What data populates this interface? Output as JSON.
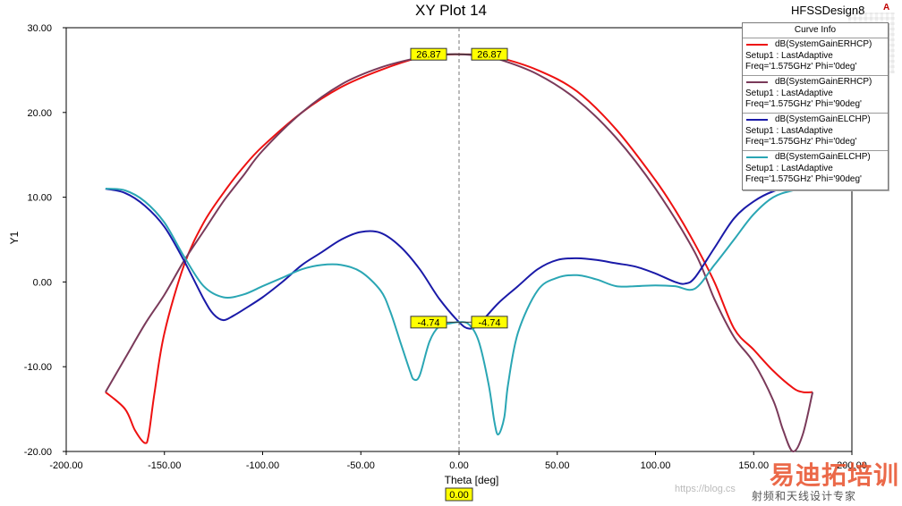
{
  "design_name": "HFSSDesign8",
  "design_icon": "A",
  "watermark": {
    "main": "易迪拓培训",
    "sub": "射频和天线设计专家",
    "url": "https://blog.cs"
  },
  "chart_data": {
    "type": "line",
    "title": "XY Plot 14",
    "xlabel": "Theta [deg]",
    "ylabel": "Y1",
    "xlim": [
      -200,
      200
    ],
    "ylim": [
      -20,
      30
    ],
    "x_ticks": [
      -200,
      -150,
      -100,
      -50,
      0,
      50,
      100,
      150,
      200
    ],
    "x_tick_labels": [
      "-200.00",
      "-150.00",
      "-100.00",
      "-50.00",
      "0.00",
      "50.00",
      "100.00",
      "150.00",
      "200.00"
    ],
    "y_ticks": [
      -20,
      -10,
      0,
      10,
      20,
      30
    ],
    "y_tick_labels": [
      "-20.00",
      "-10.00",
      "0.00",
      "10.00",
      "20.00",
      "30.00"
    ],
    "grid": false,
    "legend_title": "Curve Info",
    "series": [
      {
        "name": "dB(SystemGainERHCP)",
        "setup": "Setup1 : LastAdaptive",
        "params": "Freq='1.575GHz' Phi='0deg'",
        "color": "#ee1111",
        "x": [
          -180,
          -170,
          -165,
          -160,
          -158,
          -155,
          -150,
          -140,
          -130,
          -120,
          -110,
          -100,
          -80,
          -60,
          -40,
          -20,
          -10,
          0,
          10,
          20,
          40,
          60,
          80,
          100,
          110,
          120,
          130,
          140,
          150,
          160,
          170,
          175,
          180
        ],
        "y": [
          -13,
          -15,
          -17.5,
          -19,
          -18,
          -13,
          -6,
          2,
          7,
          10.5,
          13.5,
          16,
          20,
          23,
          25,
          26.5,
          26.8,
          26.87,
          26.8,
          26.5,
          25,
          22.5,
          18,
          12,
          8.5,
          4.5,
          0,
          -5.5,
          -8,
          -10.5,
          -12.5,
          -13,
          -13
        ]
      },
      {
        "name": "dB(SystemGainERHCP)",
        "setup": "Setup1 : LastAdaptive",
        "params": "Freq='1.575GHz' Phi='90deg'",
        "color": "#7a3a5a",
        "x": [
          -180,
          -170,
          -160,
          -150,
          -140,
          -130,
          -120,
          -110,
          -100,
          -80,
          -60,
          -40,
          -20,
          -10,
          0,
          10,
          20,
          40,
          60,
          80,
          100,
          120,
          130,
          140,
          150,
          160,
          165,
          170,
          175,
          180
        ],
        "y": [
          -13,
          -9,
          -5,
          -1.5,
          2.5,
          6,
          9.5,
          12.5,
          15.5,
          20,
          23.3,
          25.3,
          26.5,
          26.8,
          26.87,
          26.7,
          26.3,
          24.5,
          21.5,
          17,
          11,
          3.5,
          -2,
          -6.5,
          -9.5,
          -14,
          -17.5,
          -20,
          -18,
          -13
        ]
      },
      {
        "name": "dB(SystemGainELCHP)",
        "setup": "Setup1 : LastAdaptive",
        "params": "Freq='1.575GHz' Phi='0deg'",
        "color": "#1a1aa8",
        "x": [
          -180,
          -170,
          -160,
          -150,
          -140,
          -130,
          -125,
          -120,
          -115,
          -110,
          -100,
          -90,
          -80,
          -70,
          -60,
          -50,
          -40,
          -30,
          -20,
          -10,
          0,
          5,
          10,
          20,
          30,
          40,
          50,
          60,
          70,
          80,
          90,
          100,
          110,
          115,
          120,
          130,
          140,
          150,
          160,
          170,
          180
        ],
        "y": [
          11,
          10.5,
          9,
          6.5,
          2.5,
          -2,
          -3.8,
          -4.5,
          -4,
          -3.3,
          -1.8,
          0,
          2,
          3.5,
          5,
          5.9,
          5.8,
          4.2,
          1.5,
          -2,
          -4.74,
          -5.5,
          -5,
          -2.5,
          -0.5,
          1.5,
          2.6,
          2.8,
          2.6,
          2.2,
          1.8,
          1,
          0,
          -0.2,
          0.5,
          4,
          7.5,
          9.5,
          10.7,
          11.2,
          11.5
        ]
      },
      {
        "name": "dB(SystemGainELCHP)",
        "setup": "Setup1 : LastAdaptive",
        "params": "Freq='1.575GHz' Phi='90deg'",
        "color": "#2aa6b4",
        "x": [
          -180,
          -170,
          -160,
          -150,
          -140,
          -130,
          -120,
          -110,
          -100,
          -90,
          -80,
          -70,
          -60,
          -50,
          -40,
          -35,
          -30,
          -25,
          -23,
          -20,
          -15,
          -10,
          -5,
          0,
          5,
          10,
          15,
          18,
          20,
          23,
          25,
          30,
          40,
          50,
          60,
          70,
          80,
          90,
          100,
          110,
          120,
          130,
          140,
          150,
          160,
          170,
          180
        ],
        "y": [
          11,
          10.8,
          9.5,
          7,
          3,
          -0.5,
          -1.8,
          -1.5,
          -0.5,
          0.5,
          1.5,
          2,
          2,
          1.2,
          -1,
          -3.5,
          -7,
          -10.5,
          -11.5,
          -11,
          -7,
          -5.2,
          -4.9,
          -4.74,
          -5,
          -7,
          -12,
          -16.5,
          -18,
          -16,
          -12,
          -6,
          -1,
          0.5,
          0.8,
          0.3,
          -0.5,
          -0.5,
          -0.4,
          -0.5,
          -0.8,
          2,
          5,
          8,
          10,
          10.8,
          11.2
        ]
      }
    ],
    "markers": [
      {
        "label": "26.87",
        "x": 0,
        "y": 26.87,
        "side": "left"
      },
      {
        "label": "26.87",
        "x": 0,
        "y": 26.87,
        "side": "right"
      },
      {
        "label": "-4.74",
        "x": 0,
        "y": -4.74,
        "side": "left"
      },
      {
        "label": "-4.74",
        "x": 0,
        "y": -4.74,
        "side": "right"
      }
    ],
    "cursor": {
      "x": 0,
      "label": "0.00"
    }
  }
}
